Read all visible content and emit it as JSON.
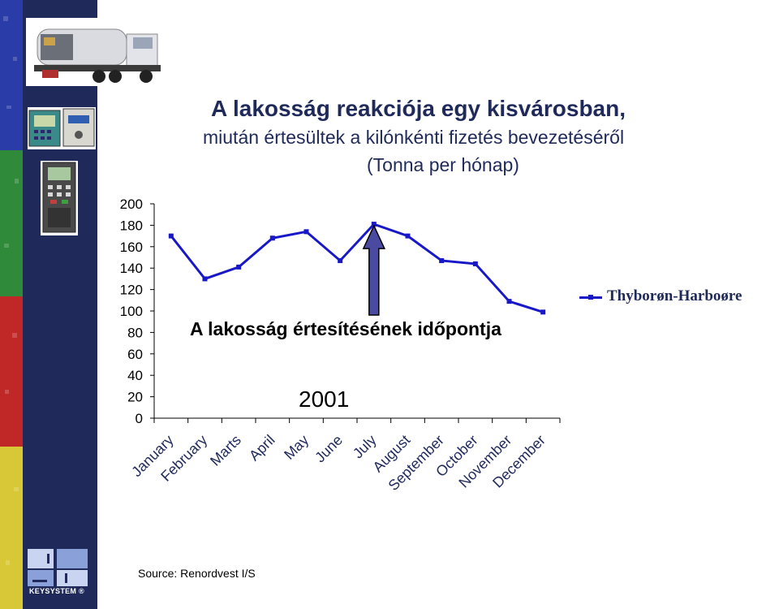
{
  "slide": {
    "title": "A lakosság reakciója egy kisvárosban,",
    "subtitle": "miután értesültek a kilónkénti fizetés bevezetéséről",
    "unit_line": "(Tonna per hónap)",
    "annotation": "A lakosság értesítésének időpontja",
    "year_label": "2001",
    "source": "Source: Renordvest I/S",
    "logo_text": "KEYSYSTEM ®"
  },
  "colors": {
    "sidebar": "#1f2a5a",
    "series_line": "#1818c8",
    "arrow_fill": "#4a4aa0",
    "title_text": "#1f2a5a"
  },
  "chart_data": {
    "type": "line",
    "title": "",
    "xlabel": "",
    "ylabel": "",
    "categories": [
      "January",
      "February",
      "Marts",
      "April",
      "May",
      "June",
      "July",
      "August",
      "September",
      "October",
      "November",
      "December"
    ],
    "series": [
      {
        "name": "Thyborøn-Harboøre",
        "values": [
          170,
          130,
          141,
          168,
          174,
          147,
          181,
          170,
          147,
          144,
          109,
          99
        ]
      }
    ],
    "ylim": [
      0,
      200
    ],
    "yticks": [
      0,
      20,
      40,
      60,
      80,
      100,
      120,
      140,
      160,
      180,
      200
    ],
    "grid": false,
    "legend": "right",
    "annotation_arrow_category": "July"
  }
}
